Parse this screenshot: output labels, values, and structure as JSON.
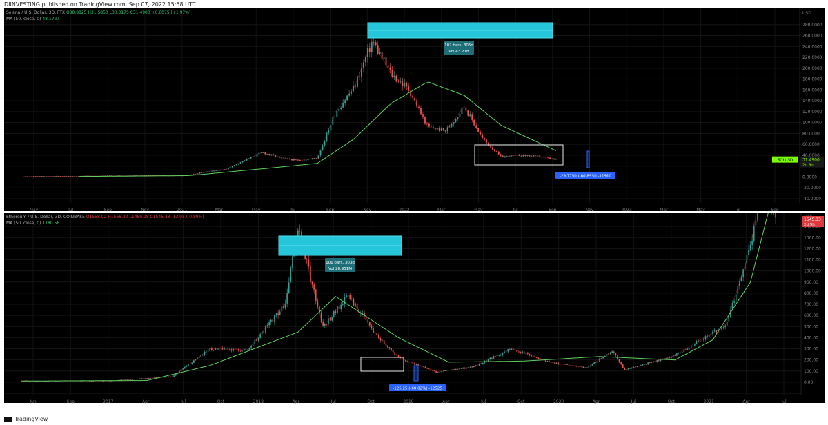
{
  "header": {
    "published": "DIINVESTING published on TradingView.com, Sep 07, 2022 15:58 UTC"
  },
  "colors": {
    "up": "#26a69a",
    "down": "#ef5350",
    "ma": "#5fd35f",
    "box": "#26c6da",
    "measure": "#2962ff"
  },
  "footer": {
    "brand": "TradingView"
  },
  "chart_data": [
    {
      "type": "line",
      "legend": {
        "symbol": "Solana / U.S. Dollar, 3D, FTX",
        "ohlc": "O30.8825  H31.5850  L30.3175  C31.4900  +0.6075 (+1.97%)",
        "ma": "MA (50, close, 0)",
        "ma_value": "48.1727"
      },
      "currency": "USD",
      "ylim": [
        -40,
        300
      ],
      "yticks": [
        "280.0000",
        "260.0000",
        "240.0000",
        "220.0000",
        "200.0000",
        "180.0000",
        "160.0000",
        "140.0000",
        "120.0000",
        "100.0000",
        "80.0000",
        "60.0000",
        "40.0000",
        "20.0000",
        "0.0000",
        "-20.0000",
        "-40.0000"
      ],
      "xticks": [
        "May",
        "Jul",
        "Sep",
        "Nov",
        "2021",
        "Mar",
        "May",
        "Jul",
        "Sep",
        "Nov",
        "2022",
        "Mar",
        "May",
        "Jul",
        "Sep",
        "Nov",
        "2023",
        "Mar",
        "May",
        "Jul",
        "Sep"
      ],
      "series": [
        {
          "x": [
            "Apr 2020",
            "Jul 2020",
            "Oct 2020",
            "Jan 2021",
            "Feb 2021",
            "Mar 2021",
            "Apr 2021",
            "May 2021",
            "Jun 2021",
            "Jul 2021",
            "Aug 2021",
            "Sep 2021",
            "Oct 2021",
            "Nov 2021",
            "Dec 2021",
            "Jan 2022",
            "Feb 2022",
            "Mar 2022",
            "Apr 2022",
            "May 2022",
            "Jun 2022",
            "Jul 2022",
            "Aug 2022",
            "Sep 2022"
          ],
          "values": [
            0.8,
            1.5,
            2.5,
            3,
            10,
            14,
            30,
            45,
            35,
            30,
            35,
            120,
            165,
            250,
            190,
            160,
            92,
            85,
            130,
            70,
            37,
            40,
            38,
            31.49
          ]
        },
        {
          "x": [
            "Jul 2020",
            "Jan 2021",
            "May 2021",
            "Aug 2021",
            "Oct 2021",
            "Dec 2021",
            "Feb 2022",
            "Apr 2022",
            "Jun 2022",
            "Sep 2022"
          ],
          "values": [
            1,
            2.5,
            15,
            25,
            70,
            135,
            175,
            150,
            95,
            48.17
          ]
        }
      ],
      "annotations": {
        "top_range": {
          "line1": "102 bars, 305d",
          "line2": "Vol 43.21B"
        },
        "bottom_range": "-29.7750 (-60.89%) -11910",
        "price_label": "SOLUSD",
        "price_value": "31.4900",
        "price_countdown": "2d 9h"
      }
    },
    {
      "type": "line",
      "legend": {
        "symbol": "Ethereum / U.S. Dollar, 3D, COINBASE",
        "ohlc": "O1558.92  H1568.30  L1489.98  C1545.33  -13.95 (-0.89%)",
        "ma": "MA (50, close, 0)",
        "ma_value": "1780.56"
      },
      "currency": "USD",
      "ylim": [
        -50,
        1500
      ],
      "yticks": [
        "1400.00",
        "1300.00",
        "1200.00",
        "1100.00",
        "1000.00",
        "900.00",
        "800.00",
        "700.00",
        "600.00",
        "500.00",
        "400.00",
        "300.00",
        "200.00",
        "100.00",
        "0.00",
        "-100.00"
      ],
      "xticks": [
        "Jun",
        "Sep",
        "2017",
        "Apr",
        "Jul",
        "Oct",
        "2018",
        "Apr",
        "Jul",
        "Oct",
        "2019",
        "Apr",
        "Jul",
        "Oct",
        "2020",
        "Apr",
        "Jul",
        "Oct",
        "2021",
        "Apr",
        "Jul"
      ],
      "series": [
        {
          "x": [
            "Mar 2016",
            "Oct 2016",
            "Mar 2017",
            "Jun 2017",
            "Sep 2017",
            "Dec 2017",
            "Jan 2018",
            "Mar 2018",
            "May 2018",
            "Jul 2018",
            "Sep 2018",
            "Dec 2018",
            "Mar 2019",
            "Jun 2019",
            "Sep 2019",
            "Dec 2019",
            "Feb 2020",
            "Mar 2020",
            "Jul 2020",
            "Sep 2020",
            "Nov 2020",
            "Jan 2021",
            "Feb 2021",
            "Mar 2021"
          ],
          "values": [
            10,
            11,
            50,
            300,
            290,
            700,
            1380,
            500,
            780,
            460,
            220,
            90,
            140,
            300,
            180,
            130,
            280,
            110,
            240,
            380,
            500,
            1200,
            1900,
            1545.33
          ]
        },
        {
          "x": [
            "Mar 2016",
            "Jan 2017",
            "Jun 2017",
            "Jan 2018",
            "Apr 2018",
            "Sep 2018",
            "Jan 2019",
            "Jul 2019",
            "Jan 2020",
            "Jul 2020",
            "Oct 2020",
            "Jan 2021",
            "Mar 2021"
          ],
          "values": [
            10,
            15,
            150,
            450,
            770,
            400,
            180,
            190,
            230,
            200,
            380,
            900,
            1780.56
          ]
        }
      ],
      "annotations": {
        "top_range": {
          "line1": "101 bars, 303d",
          "line2": "Vol 28.951M"
        },
        "bottom_range": "-125.25 (-60.02%) -12525",
        "price_value": "1545.33",
        "price_countdown": "2d 9h"
      }
    }
  ]
}
